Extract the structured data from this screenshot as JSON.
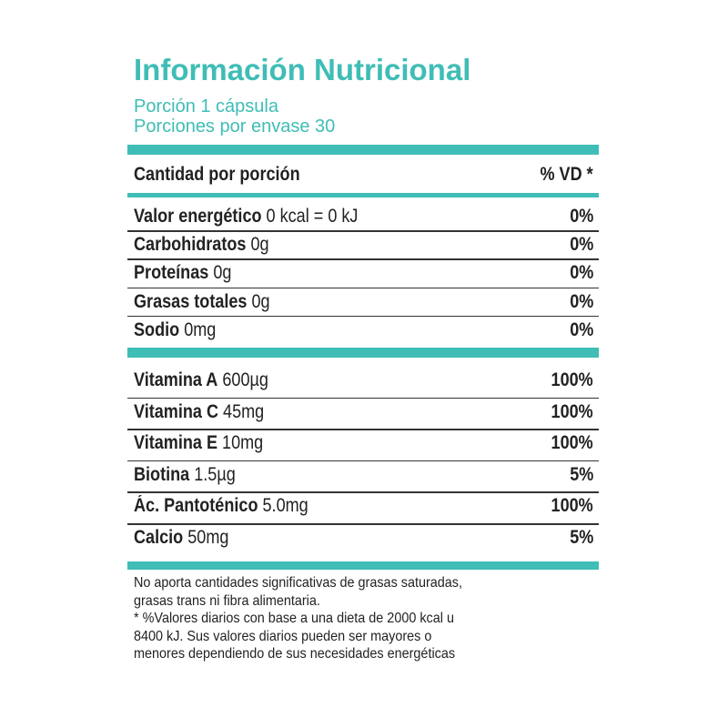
{
  "header": {
    "title": "Información Nutricional",
    "serving": "Porción 1 cápsula",
    "servings_per_container": "Porciones por envase 30"
  },
  "table": {
    "column_headers": [
      "Cantidad por porción",
      "% VD *"
    ],
    "sections": [
      {
        "rows": [
          {
            "name": "Valor energético",
            "amount": "0 kcal = 0 kJ",
            "vd": "0%"
          },
          {
            "name": "Carbohidratos",
            "amount": "0g",
            "vd": "0%"
          },
          {
            "name": "Proteínas",
            "amount": "0g",
            "vd": "0%"
          },
          {
            "name": "Grasas totales",
            "amount": "0g",
            "vd": "0%"
          },
          {
            "name": "Sodio",
            "amount": "0mg",
            "vd": "0%"
          }
        ]
      },
      {
        "rows": [
          {
            "name": "Vitamina A",
            "amount": "600µg",
            "vd": "100%"
          },
          {
            "name": "Vitamina C",
            "amount": "45mg",
            "vd": "100%"
          },
          {
            "name": "Vitamina E",
            "amount": "10mg",
            "vd": "100%"
          },
          {
            "name": "Biotina",
            "amount": "1.5µg",
            "vd": "5%"
          },
          {
            "name": "Ác. Pantoténico",
            "amount": "5.0mg",
            "vd": "100%"
          },
          {
            "name": "Calcio",
            "amount": "50mg",
            "vd": "5%"
          }
        ]
      }
    ]
  },
  "footer": {
    "lines": [
      "No aporta cantidades significativas de grasas saturadas,",
      "grasas trans ni fibra alimentaria.",
      "* %Valores diarios con base a una dieta de 2000 kcal u",
      "8400 kJ. Sus valores diarios pueden ser mayores o",
      "menores dependiendo de sus necesidades energéticas"
    ]
  }
}
